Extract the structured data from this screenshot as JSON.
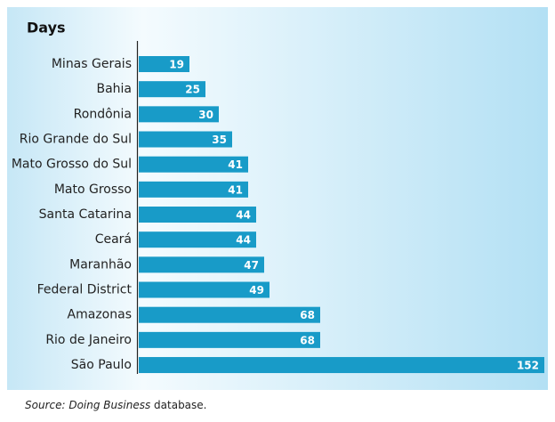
{
  "chart_data": {
    "type": "bar",
    "orientation": "horizontal",
    "title": "Days",
    "categories": [
      "Minas Gerais",
      "Bahia",
      "Rondônia",
      "Rio Grande do Sul",
      "Mato Grosso do Sul",
      "Mato Grosso",
      "Santa Catarina",
      "Ceará",
      "Maranhão",
      "Federal District",
      "Amazonas",
      "Rio de Janeiro",
      "São Paulo"
    ],
    "values": [
      19,
      25,
      30,
      35,
      41,
      41,
      44,
      44,
      47,
      49,
      68,
      68,
      152
    ],
    "color": "#189bc8",
    "source": {
      "italic": "Source: Doing Business",
      "text": " database."
    }
  }
}
